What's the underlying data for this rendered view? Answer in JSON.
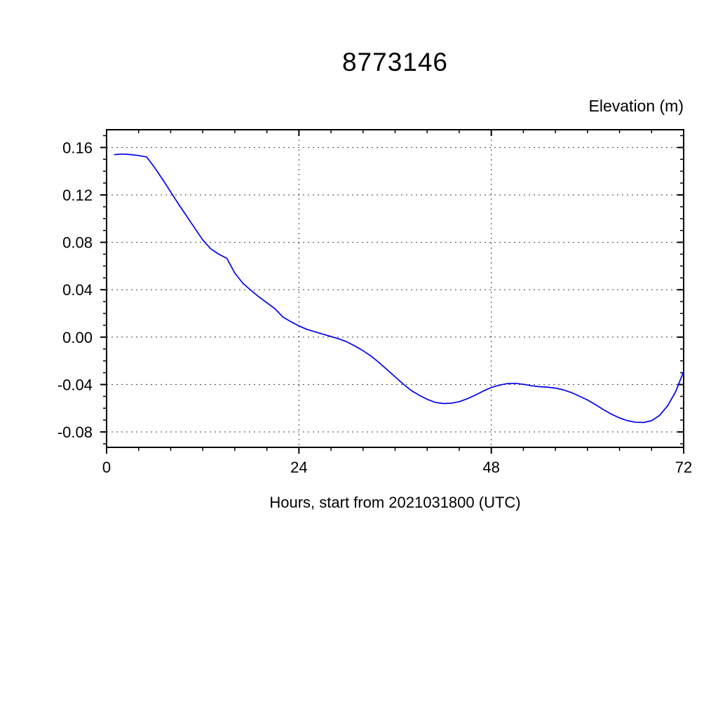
{
  "chart_data": {
    "type": "line",
    "title": "8773146",
    "ylabel": "Elevation (m)",
    "xlabel": "Hours, start from 2021031800 (UTC)",
    "xlim": [
      0,
      72
    ],
    "ylim": [
      -0.093,
      0.175
    ],
    "xticks": {
      "values": [
        0,
        24,
        48,
        72
      ],
      "labels": [
        "0",
        "24",
        "48",
        "72"
      ],
      "minor_step": 4
    },
    "yticks": {
      "values": [
        0.16,
        0.12,
        0.08,
        0.04,
        0.0,
        -0.04,
        -0.08
      ],
      "labels": [
        "0.16",
        "0.12",
        "0.08",
        "0.04",
        "0.00",
        "-0.04",
        "-0.08"
      ],
      "minor_step": 0.01
    },
    "grid": {
      "on": true,
      "style": "dashed",
      "color": "#3a3a3a"
    },
    "frame_color": "#000000",
    "legend": "none",
    "series": [
      {
        "name": "elevation",
        "color": "#0000ee",
        "x": [
          1,
          2,
          3,
          4,
          5,
          6,
          7,
          8,
          9,
          10,
          11,
          12,
          13,
          14,
          15,
          16,
          17,
          18,
          19,
          20,
          21,
          22,
          23,
          24,
          25,
          26,
          27,
          28,
          29,
          30,
          31,
          32,
          33,
          34,
          35,
          36,
          37,
          38,
          39,
          40,
          41,
          42,
          43,
          44,
          45,
          46,
          47,
          48,
          49,
          50,
          51,
          52,
          53,
          54,
          55,
          56,
          57,
          58,
          59,
          60,
          61,
          62,
          63,
          64,
          65,
          66,
          67,
          68,
          69,
          70,
          71,
          72
        ],
        "y": [
          0.154,
          0.1545,
          0.154,
          0.1532,
          0.152,
          0.143,
          0.133,
          0.1225,
          0.112,
          0.102,
          0.092,
          0.082,
          0.0745,
          0.07,
          0.0665,
          0.054,
          0.0455,
          0.0395,
          0.034,
          0.029,
          0.024,
          0.017,
          0.013,
          0.0095,
          0.0065,
          0.0045,
          0.0025,
          0.0005,
          -0.0015,
          -0.004,
          -0.0075,
          -0.0115,
          -0.016,
          -0.0215,
          -0.0275,
          -0.0335,
          -0.0395,
          -0.045,
          -0.049,
          -0.0525,
          -0.055,
          -0.056,
          -0.0558,
          -0.0545,
          -0.052,
          -0.049,
          -0.0455,
          -0.0425,
          -0.0405,
          -0.0392,
          -0.039,
          -0.0398,
          -0.041,
          -0.0418,
          -0.0422,
          -0.043,
          -0.0445,
          -0.0468,
          -0.0498,
          -0.053,
          -0.057,
          -0.0612,
          -0.065,
          -0.0682,
          -0.0705,
          -0.0718,
          -0.072,
          -0.0705,
          -0.066,
          -0.058,
          -0.046,
          -0.029
        ]
      }
    ]
  }
}
